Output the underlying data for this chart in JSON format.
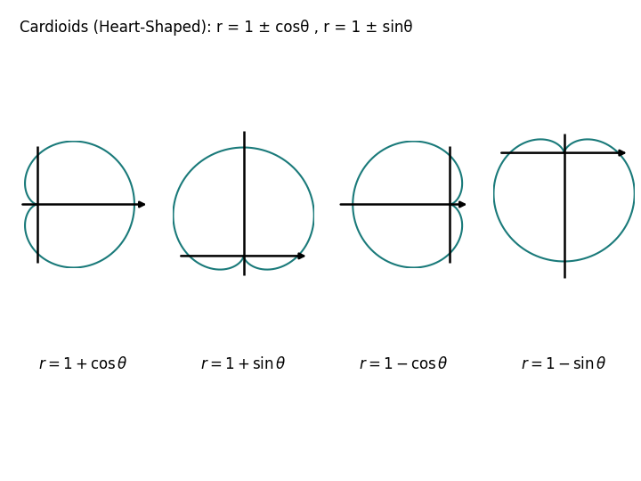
{
  "title": "Cardioids (Heart-Shaped): r = 1 ± cosθ , r = 1 ± sinθ",
  "curve_color": "#1a7a7a",
  "axis_color": "#000000",
  "background_color": "#ffffff",
  "line_width": 1.5,
  "axis_lw": 1.8,
  "equations": [
    "$r = 1 + \\cos\\theta$",
    "$r = 1 + \\sin\\theta$",
    "$r = 1 - \\cos\\theta$",
    "$r = 1 - \\sin\\theta$"
  ],
  "formulas": [
    "1+cos",
    "1+sin",
    "1-cos",
    "1-sin"
  ],
  "title_fontsize": 12,
  "label_fontsize": 12,
  "figsize": [
    7.2,
    5.4
  ],
  "dpi": 100
}
